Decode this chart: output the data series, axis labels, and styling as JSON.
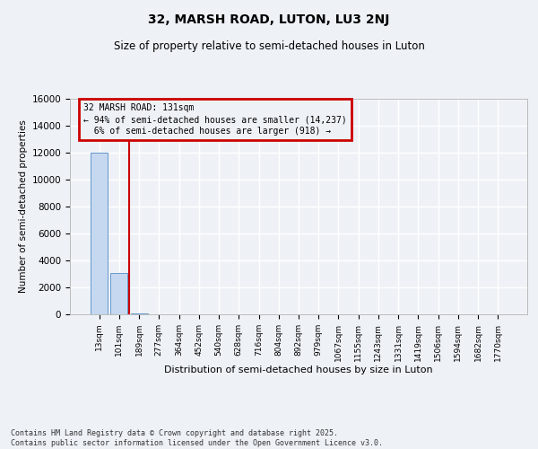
{
  "title1": "32, MARSH ROAD, LUTON, LU3 2NJ",
  "title2": "Size of property relative to semi-detached houses in Luton",
  "xlabel": "Distribution of semi-detached houses by size in Luton",
  "ylabel": "Number of semi-detached properties",
  "categories": [
    "13sqm",
    "101sqm",
    "189sqm",
    "277sqm",
    "364sqm",
    "452sqm",
    "540sqm",
    "628sqm",
    "716sqm",
    "804sqm",
    "892sqm",
    "979sqm",
    "1067sqm",
    "1155sqm",
    "1243sqm",
    "1331sqm",
    "1419sqm",
    "1506sqm",
    "1594sqm",
    "1682sqm",
    "1770sqm"
  ],
  "values": [
    12000,
    3100,
    100,
    0,
    0,
    0,
    0,
    0,
    0,
    0,
    0,
    0,
    0,
    0,
    0,
    0,
    0,
    0,
    0,
    0,
    0
  ],
  "bar_color": "#c5d8f0",
  "bar_edge_color": "#6699cc",
  "red_line_x": 1.5,
  "annotation_title": "32 MARSH ROAD: 131sqm",
  "annotation_line1": "← 94% of semi-detached houses are smaller (14,237)",
  "annotation_line2": "6% of semi-detached houses are larger (918) →",
  "annotation_box_color": "#cc0000",
  "ylim": [
    0,
    16000
  ],
  "yticks": [
    0,
    2000,
    4000,
    6000,
    8000,
    10000,
    12000,
    14000,
    16000
  ],
  "footer1": "Contains HM Land Registry data © Crown copyright and database right 2025.",
  "footer2": "Contains public sector information licensed under the Open Government Licence v3.0.",
  "bg_color": "#eef2f7",
  "grid_color": "#ffffff"
}
